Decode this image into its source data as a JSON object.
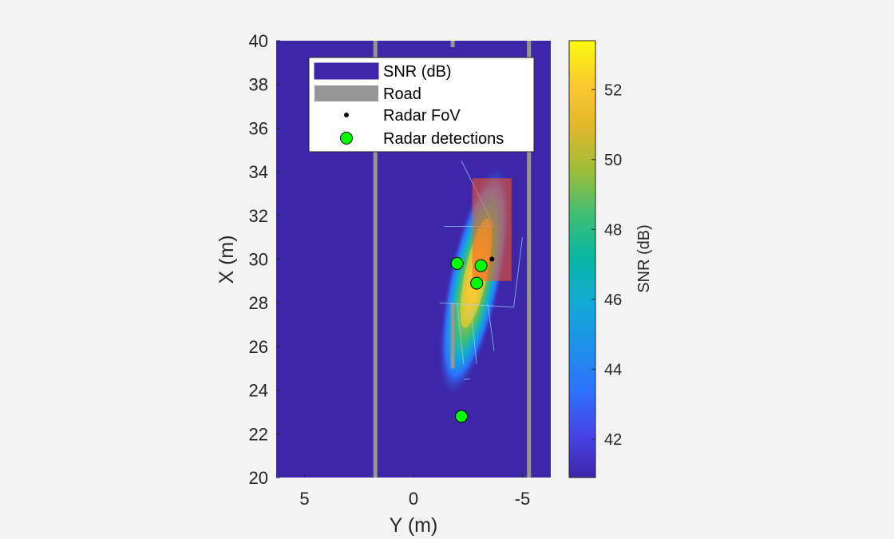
{
  "chart_data": {
    "type": "heatmap",
    "xlabel": "Y (m)",
    "ylabel": "X (m)",
    "x_reversed": true,
    "xlim": [
      6.3,
      -6.3
    ],
    "ylim": [
      20,
      40
    ],
    "xticks": [
      5,
      0,
      -5
    ],
    "xtick_labels": [
      "5",
      "0",
      "-5"
    ],
    "yticks": [
      20,
      22,
      24,
      26,
      28,
      30,
      32,
      34,
      36,
      38,
      40
    ],
    "ytick_labels": [
      "20",
      "22",
      "24",
      "26",
      "28",
      "30",
      "32",
      "34",
      "36",
      "38",
      "40"
    ],
    "colorbar": {
      "label": "SNR (dB)",
      "range": [
        40.9,
        53.4
      ],
      "ticks": [
        42,
        44,
        46,
        48,
        50,
        52
      ],
      "tick_labels": [
        "42",
        "44",
        "46",
        "48",
        "50",
        "52"
      ],
      "colormap": "parula"
    },
    "legend": {
      "placement": "top-center",
      "entries": [
        "SNR (dB)",
        "Road",
        "Radar FoV",
        "Radar detections"
      ]
    },
    "road_lines_y": [
      1.75,
      -5.3
    ],
    "road_center_dash_y": -1.8,
    "road_stub": {
      "y": -1.8,
      "x_from": 25,
      "x_to": 28
    },
    "target_box": {
      "y_from": -2.7,
      "y_to": -4.5,
      "x_from": 29,
      "x_to": 33.7
    },
    "radar_fov_point": {
      "y": -3.6,
      "x": 30.0
    },
    "detections": [
      {
        "y": -2.0,
        "x": 29.8
      },
      {
        "y": -3.1,
        "x": 29.7
      },
      {
        "y": -2.9,
        "x": 28.9
      },
      {
        "y": -2.2,
        "x": 22.8
      }
    ],
    "snr_blob": {
      "center_y": -2.8,
      "center_x": 29.0,
      "peak_db": 53.0,
      "background_db": 41.0
    }
  },
  "colors": {
    "figure_background": "#f3f3f3",
    "heatmap_background": "#3e26a8",
    "road": "#969696",
    "detection_fill": "#00ff00",
    "target_box": "#ff5a1e"
  }
}
